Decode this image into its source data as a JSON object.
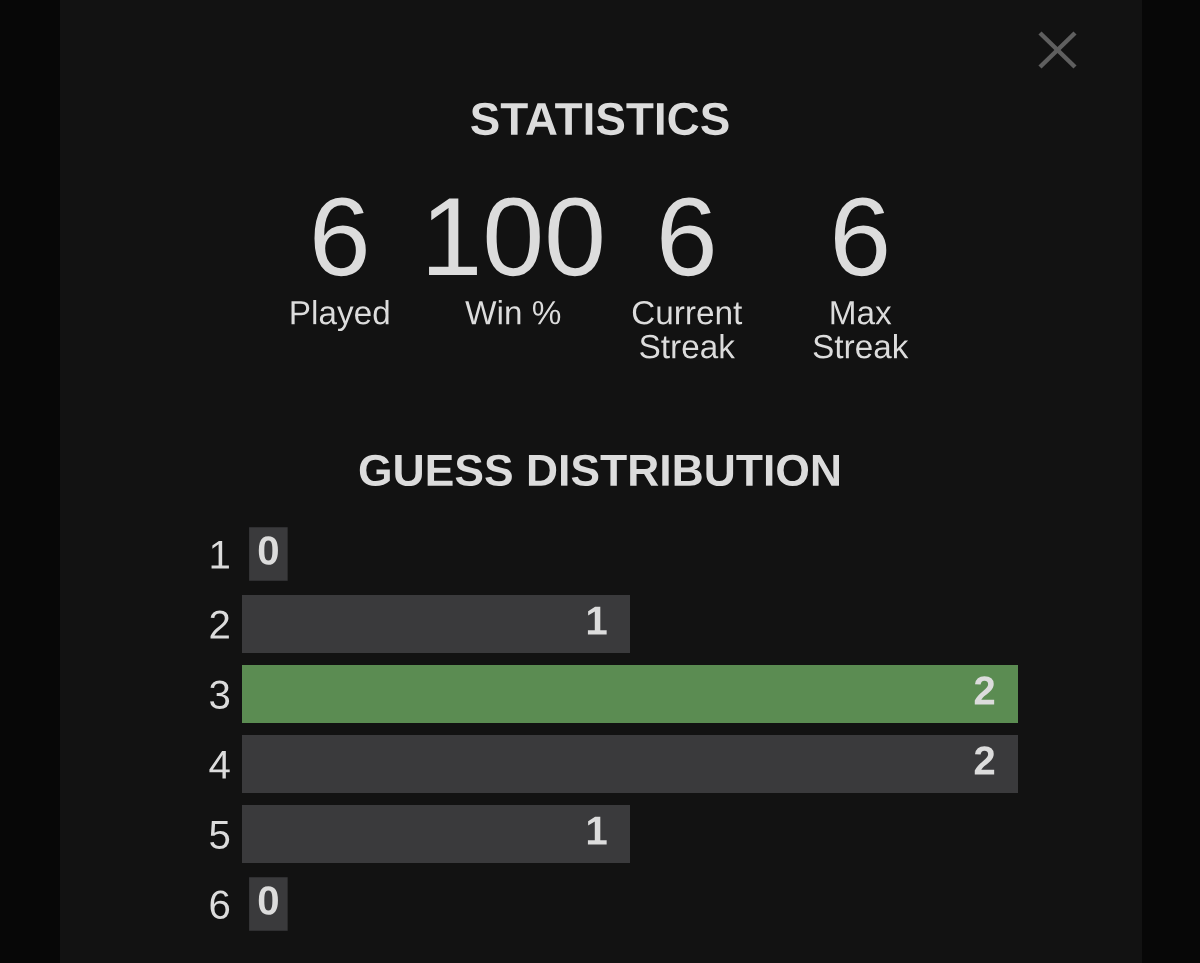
{
  "chart_data": [
    {
      "type": "other",
      "title": "STATISTICS",
      "categories": [
        "Played",
        "Win %",
        "Current\nStreak",
        "Max\nStreak"
      ],
      "values": [
        6,
        100,
        6,
        6
      ],
      "data_labels": true
    },
    {
      "type": "bar",
      "orientation": "horizontal",
      "title": "GUESS DISTRIBUTION",
      "categories": [
        "1",
        "2",
        "3",
        "4",
        "5",
        "6"
      ],
      "values": [
        0,
        1,
        2,
        2,
        1,
        0
      ],
      "colors": [
        "#3a3a3c",
        "#3a3a3c",
        "#5b8c52",
        "#3a3a3c",
        "#3a3a3c",
        "#3a3a3c"
      ],
      "data_labels": true
    }
  ]
}
